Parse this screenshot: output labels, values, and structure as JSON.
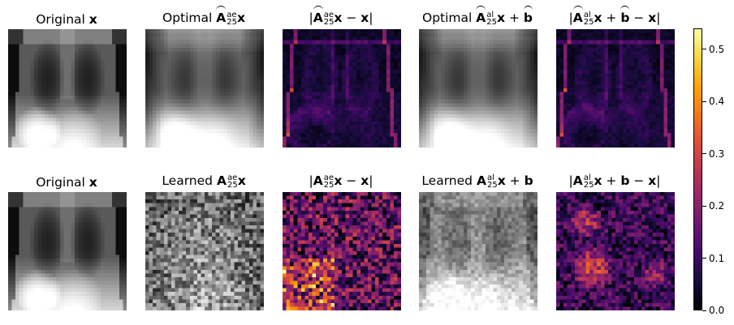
{
  "figure": {
    "rows": [
      {
        "panels": [
          {
            "title_prefix": "Original ",
            "title_math": "x",
            "kind": "xray-sharp"
          },
          {
            "title_prefix": "Optimal ",
            "title_math": "Âx",
            "kind": "xray-blur",
            "sup": "ae",
            "sub": "25"
          },
          {
            "title_prefix": "",
            "title_math": "|Âx − x|",
            "kind": "err-low",
            "sup": "ae",
            "sub": "25"
          },
          {
            "title_prefix": "Optimal ",
            "title_math": "Âx + b̂",
            "kind": "xray-blur",
            "sup": "al",
            "sub": "25"
          },
          {
            "title_prefix": "",
            "title_math": "|Âx + b̂ − x|",
            "kind": "err-low",
            "sup": "al",
            "sub": "25"
          }
        ]
      },
      {
        "panels": [
          {
            "title_prefix": "Original ",
            "title_math": "x",
            "kind": "xray-sharp"
          },
          {
            "title_prefix": "Learned ",
            "title_math": "Ax",
            "kind": "noise-gray",
            "sup": "ae",
            "sub": "25"
          },
          {
            "title_prefix": "",
            "title_math": "|Ax − x|",
            "kind": "err-high",
            "sup": "ae",
            "sub": "25"
          },
          {
            "title_prefix": "Learned ",
            "title_math": "Ax + b",
            "kind": "noise-xray",
            "sup": "al",
            "sub": "25"
          },
          {
            "title_prefix": "",
            "title_math": "|Ax + b − x|",
            "kind": "err-mid",
            "sup": "al",
            "sub": "25"
          }
        ]
      }
    ]
  },
  "titles": {
    "r1c1": "Original",
    "r1c2": "Optimal",
    "r1c4": "Optimal",
    "r2c1": "Original",
    "r2c2": "Learned",
    "r2c4": "Learned",
    "bold_x": "x",
    "bold_A": "A",
    "bold_b": "b",
    "sup_ae": "ae",
    "sup_al": "al",
    "sub_25": "25",
    "plus": "+",
    "minus": "−",
    "bar": "|"
  },
  "colorbar": {
    "colormap": "inferno",
    "min": 0.0,
    "max": 0.54,
    "tick_labels": [
      "0.0",
      "0.1",
      "0.2",
      "0.3",
      "0.4",
      "0.5"
    ],
    "tick_values": [
      0.0,
      0.1,
      0.2,
      0.3,
      0.4,
      0.5
    ]
  },
  "colors": {
    "background": "#ffffff",
    "text": "#000000"
  }
}
